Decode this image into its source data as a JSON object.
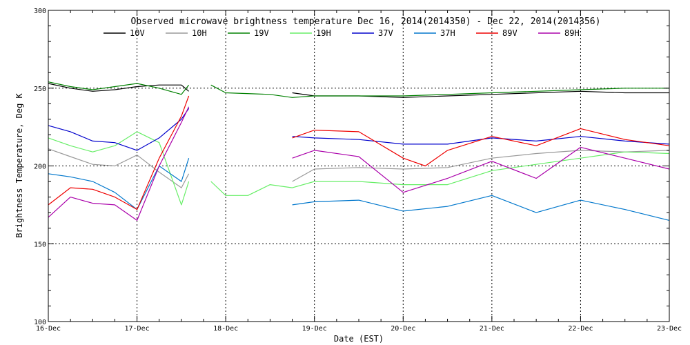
{
  "chart_data": {
    "type": "line",
    "title": "Observed microwave brightness temperature Dec 16, 2014(2014350) - Dec 22, 2014(2014356)",
    "xlabel": "Date (EST)",
    "ylabel": "Brightness Temperature, Deg K",
    "xlim": [
      "2014-12-16",
      "2014-12-23"
    ],
    "ylim": [
      100,
      300
    ],
    "x_ticks": [
      "16-Dec",
      "17-Dec",
      "18-Dec",
      "19-Dec",
      "20-Dec",
      "21-Dec",
      "22-Dec",
      "23-Dec"
    ],
    "y_ticks": [
      100,
      150,
      200,
      250,
      300
    ],
    "grid": "dotted",
    "legend_position": "top",
    "series": [
      {
        "name": "10V",
        "color": "#000000",
        "segments": [
          [
            [
              "2014-12-16 00:00",
              253
            ],
            [
              "2014-12-16 06:00",
              250
            ],
            [
              "2014-12-16 12:00",
              248
            ],
            [
              "2014-12-16 18:00",
              249
            ],
            [
              "2014-12-17 00:00",
              251
            ],
            [
              "2014-12-17 06:00",
              252
            ],
            [
              "2014-12-17 12:00",
              252
            ],
            [
              "2014-12-17 14:00",
              248
            ]
          ],
          [
            [
              "2014-12-18 18:00",
              247
            ],
            [
              "2014-12-19 00:00",
              245
            ],
            [
              "2014-12-19 12:00",
              245
            ],
            [
              "2014-12-20 00:00",
              244
            ],
            [
              "2014-12-20 12:00",
              245
            ],
            [
              "2014-12-21 00:00",
              246
            ],
            [
              "2014-12-21 12:00",
              247
            ],
            [
              "2014-12-22 00:00",
              248
            ],
            [
              "2014-12-22 12:00",
              247
            ],
            [
              "2014-12-23 00:00",
              247
            ]
          ]
        ]
      },
      {
        "name": "10H",
        "color": "#999999",
        "segments": [
          [
            [
              "2014-12-16 00:00",
              211
            ],
            [
              "2014-12-16 06:00",
              206
            ],
            [
              "2014-12-16 12:00",
              201
            ],
            [
              "2014-12-16 18:00",
              200
            ],
            [
              "2014-12-17 00:00",
              207
            ],
            [
              "2014-12-17 06:00",
              196
            ],
            [
              "2014-12-17 12:00",
              186
            ],
            [
              "2014-12-17 14:00",
              195
            ]
          ],
          [
            [
              "2014-12-18 18:00",
              190
            ],
            [
              "2014-12-19 00:00",
              198
            ],
            [
              "2014-12-19 12:00",
              199
            ],
            [
              "2014-12-20 00:00",
              198
            ],
            [
              "2014-12-20 12:00",
              199
            ],
            [
              "2014-12-21 00:00",
              205
            ],
            [
              "2014-12-21 12:00",
              208
            ],
            [
              "2014-12-22 00:00",
              210
            ],
            [
              "2014-12-22 12:00",
              209
            ],
            [
              "2014-12-23 00:00",
              210
            ]
          ]
        ]
      },
      {
        "name": "19V",
        "color": "#008000",
        "segments": [
          [
            [
              "2014-12-16 00:00",
              254
            ],
            [
              "2014-12-16 06:00",
              251
            ],
            [
              "2014-12-16 12:00",
              249
            ],
            [
              "2014-12-16 18:00",
              251
            ],
            [
              "2014-12-17 00:00",
              253
            ],
            [
              "2014-12-17 06:00",
              250
            ],
            [
              "2014-12-17 12:00",
              246
            ],
            [
              "2014-12-17 14:00",
              252
            ]
          ],
          [
            [
              "2014-12-17 20:00",
              252
            ],
            [
              "2014-12-18 00:00",
              247
            ],
            [
              "2014-12-18 12:00",
              246
            ],
            [
              "2014-12-18 18:00",
              244
            ],
            [
              "2014-12-19 00:00",
              245
            ],
            [
              "2014-12-19 12:00",
              245
            ],
            [
              "2014-12-20 00:00",
              245
            ],
            [
              "2014-12-20 12:00",
              246
            ],
            [
              "2014-12-21 00:00",
              247
            ],
            [
              "2014-12-21 12:00",
              248
            ],
            [
              "2014-12-22 00:00",
              249
            ],
            [
              "2014-12-22 12:00",
              250
            ],
            [
              "2014-12-23 00:00",
              250
            ]
          ]
        ]
      },
      {
        "name": "19H",
        "color": "#66ee66",
        "segments": [
          [
            [
              "2014-12-16 00:00",
              218
            ],
            [
              "2014-12-16 06:00",
              213
            ],
            [
              "2014-12-16 12:00",
              209
            ],
            [
              "2014-12-16 18:00",
              213
            ],
            [
              "2014-12-17 00:00",
              222
            ],
            [
              "2014-12-17 06:00",
              215
            ],
            [
              "2014-12-17 12:00",
              175
            ],
            [
              "2014-12-17 14:00",
              190
            ]
          ],
          [
            [
              "2014-12-17 20:00",
              190
            ],
            [
              "2014-12-18 00:00",
              181
            ],
            [
              "2014-12-18 06:00",
              181
            ],
            [
              "2014-12-18 12:00",
              188
            ],
            [
              "2014-12-18 18:00",
              186
            ],
            [
              "2014-12-19 00:00",
              190
            ],
            [
              "2014-12-19 12:00",
              190
            ],
            [
              "2014-12-20 00:00",
              188
            ],
            [
              "2014-12-20 12:00",
              188
            ],
            [
              "2014-12-21 00:00",
              197
            ],
            [
              "2014-12-21 12:00",
              201
            ],
            [
              "2014-12-22 00:00",
              205
            ],
            [
              "2014-12-22 12:00",
              209
            ],
            [
              "2014-12-23 00:00",
              208
            ]
          ]
        ]
      },
      {
        "name": "37V",
        "color": "#0000cc",
        "segments": [
          [
            [
              "2014-12-16 00:00",
              226
            ],
            [
              "2014-12-16 06:00",
              222
            ],
            [
              "2014-12-16 12:00",
              216
            ],
            [
              "2014-12-16 18:00",
              215
            ],
            [
              "2014-12-17 00:00",
              210
            ],
            [
              "2014-12-17 06:00",
              218
            ],
            [
              "2014-12-17 12:00",
              230
            ],
            [
              "2014-12-17 14:00",
              237
            ]
          ],
          [
            [
              "2014-12-18 18:00",
              219
            ],
            [
              "2014-12-19 00:00",
              218
            ],
            [
              "2014-12-19 12:00",
              217
            ],
            [
              "2014-12-20 00:00",
              214
            ],
            [
              "2014-12-20 12:00",
              214
            ],
            [
              "2014-12-21 00:00",
              218
            ],
            [
              "2014-12-21 12:00",
              216
            ],
            [
              "2014-12-22 00:00",
              219
            ],
            [
              "2014-12-22 12:00",
              216
            ],
            [
              "2014-12-23 00:00",
              214
            ]
          ]
        ]
      },
      {
        "name": "37H",
        "color": "#0077cc",
        "segments": [
          [
            [
              "2014-12-16 00:00",
              195
            ],
            [
              "2014-12-16 06:00",
              193
            ],
            [
              "2014-12-16 12:00",
              190
            ],
            [
              "2014-12-16 18:00",
              183
            ],
            [
              "2014-12-17 00:00",
              172
            ],
            [
              "2014-12-17 06:00",
              200
            ],
            [
              "2014-12-17 12:00",
              190
            ],
            [
              "2014-12-17 14:00",
              205
            ]
          ],
          [
            [
              "2014-12-18 18:00",
              175
            ],
            [
              "2014-12-19 00:00",
              177
            ],
            [
              "2014-12-19 12:00",
              178
            ],
            [
              "2014-12-20 00:00",
              171
            ],
            [
              "2014-12-20 12:00",
              174
            ],
            [
              "2014-12-21 00:00",
              181
            ],
            [
              "2014-12-21 12:00",
              170
            ],
            [
              "2014-12-22 00:00",
              178
            ],
            [
              "2014-12-22 12:00",
              172
            ],
            [
              "2014-12-23 00:00",
              165
            ]
          ]
        ]
      },
      {
        "name": "89V",
        "color": "#ee0000",
        "segments": [
          [
            [
              "2014-12-16 00:00",
              175
            ],
            [
              "2014-12-16 06:00",
              186
            ],
            [
              "2014-12-16 12:00",
              185
            ],
            [
              "2014-12-16 18:00",
              180
            ],
            [
              "2014-12-17 00:00",
              172
            ],
            [
              "2014-12-17 06:00",
              205
            ],
            [
              "2014-12-17 12:00",
              232
            ],
            [
              "2014-12-17 14:00",
              245
            ]
          ],
          [
            [
              "2014-12-18 18:00",
              218
            ],
            [
              "2014-12-19 00:00",
              223
            ],
            [
              "2014-12-19 12:00",
              222
            ],
            [
              "2014-12-20 00:00",
              205
            ],
            [
              "2014-12-20 06:00",
              200
            ],
            [
              "2014-12-20 12:00",
              210
            ],
            [
              "2014-12-21 00:00",
              219
            ],
            [
              "2014-12-21 12:00",
              213
            ],
            [
              "2014-12-22 00:00",
              224
            ],
            [
              "2014-12-22 12:00",
              217
            ],
            [
              "2014-12-23 00:00",
              213
            ]
          ]
        ]
      },
      {
        "name": "89H",
        "color": "#aa00aa",
        "segments": [
          [
            [
              "2014-12-16 00:00",
              167
            ],
            [
              "2014-12-16 06:00",
              180
            ],
            [
              "2014-12-16 12:00",
              176
            ],
            [
              "2014-12-16 18:00",
              175
            ],
            [
              "2014-12-17 00:00",
              165
            ],
            [
              "2014-12-17 06:00",
              200
            ],
            [
              "2014-12-17 12:00",
              228
            ],
            [
              "2014-12-17 14:00",
              238
            ]
          ],
          [
            [
              "2014-12-18 18:00",
              205
            ],
            [
              "2014-12-19 00:00",
              210
            ],
            [
              "2014-12-19 12:00",
              206
            ],
            [
              "2014-12-20 00:00",
              183
            ],
            [
              "2014-12-20 12:00",
              192
            ],
            [
              "2014-12-21 00:00",
              203
            ],
            [
              "2014-12-21 12:00",
              192
            ],
            [
              "2014-12-22 00:00",
              212
            ],
            [
              "2014-12-22 12:00",
              205
            ],
            [
              "2014-12-23 00:00",
              198
            ]
          ]
        ]
      }
    ]
  }
}
